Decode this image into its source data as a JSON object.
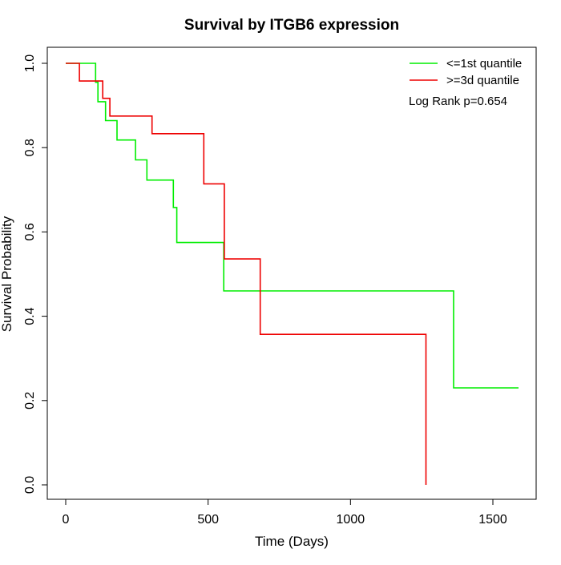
{
  "chart_data": {
    "type": "line",
    "title": "Survival by ITGB6 expression",
    "xlabel": "Time (Days)",
    "ylabel": "Survival Probability",
    "xlim": [
      0,
      1600
    ],
    "ylim": [
      0,
      1
    ],
    "x_ticks": [
      0,
      500,
      1000,
      1500
    ],
    "y_ticks": [
      0.0,
      0.2,
      0.4,
      0.6,
      0.8,
      1.0
    ],
    "x_tick_labels": [
      "0",
      "500",
      "1000",
      "1500"
    ],
    "y_tick_labels": [
      "0.0",
      "0.2",
      "0.4",
      "0.6",
      "0.8",
      "1.0"
    ],
    "grid": false,
    "legend_position": "top-right",
    "annotation": "Log Rank p=0.654",
    "series": [
      {
        "name": "<=1st quantile",
        "color": "#00ee00",
        "step": true,
        "points": [
          [
            0,
            1.0
          ],
          [
            105,
            1.0
          ],
          [
            105,
            0.955
          ],
          [
            113,
            0.955
          ],
          [
            113,
            0.909
          ],
          [
            140,
            0.909
          ],
          [
            140,
            0.864
          ],
          [
            180,
            0.864
          ],
          [
            180,
            0.818
          ],
          [
            245,
            0.818
          ],
          [
            245,
            0.771
          ],
          [
            285,
            0.771
          ],
          [
            285,
            0.723
          ],
          [
            378,
            0.723
          ],
          [
            378,
            0.658
          ],
          [
            390,
            0.658
          ],
          [
            390,
            0.575
          ],
          [
            555,
            0.575
          ],
          [
            555,
            0.46
          ],
          [
            1362,
            0.46
          ],
          [
            1362,
            0.23
          ],
          [
            1590,
            0.23
          ]
        ]
      },
      {
        "name": ">=3d quantile",
        "color": "#ee0000",
        "step": true,
        "points": [
          [
            0,
            1.0
          ],
          [
            48,
            1.0
          ],
          [
            48,
            0.958
          ],
          [
            130,
            0.958
          ],
          [
            130,
            0.917
          ],
          [
            155,
            0.917
          ],
          [
            155,
            0.875
          ],
          [
            303,
            0.875
          ],
          [
            303,
            0.833
          ],
          [
            485,
            0.833
          ],
          [
            485,
            0.714
          ],
          [
            557,
            0.714
          ],
          [
            557,
            0.536
          ],
          [
            683,
            0.536
          ],
          [
            683,
            0.357
          ],
          [
            1265,
            0.357
          ],
          [
            1265,
            0.0
          ]
        ]
      }
    ]
  }
}
